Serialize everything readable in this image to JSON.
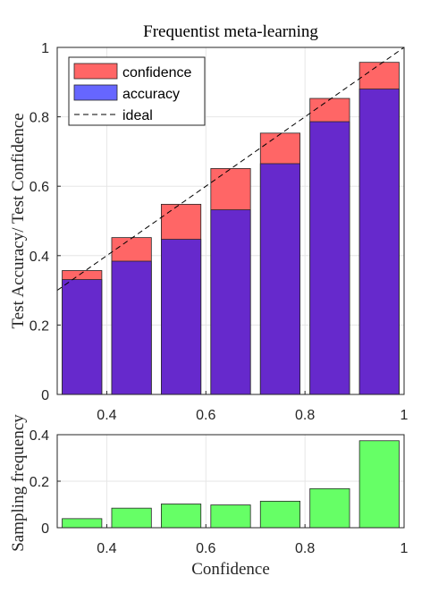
{
  "colors": {
    "confidence": "#ff6666",
    "accuracy_blend": "#6629cc",
    "accuracy_legend": "#6666ff",
    "frequency": "#66ff66",
    "grid": "#e6e6e6",
    "axis": "#262626"
  },
  "chart_data": [
    {
      "type": "bar",
      "title": "Frequentist meta-learning",
      "xlabel": "",
      "ylabel": "Test Accuracy/ Test Confidence",
      "xlim": [
        0.3,
        1.0
      ],
      "ylim": [
        0,
        1
      ],
      "xticks": [
        "0.4",
        "0.6",
        "0.8",
        "1"
      ],
      "yticks": [
        "0",
        "0.2",
        "0.4",
        "0.6",
        "0.8",
        "1"
      ],
      "grid": true,
      "legend_position": "top-left",
      "bar_centers": [
        0.35,
        0.45,
        0.55,
        0.65,
        0.75,
        0.85,
        0.95
      ],
      "bar_width": 0.08,
      "series": [
        {
          "name": "confidence",
          "values": [
            0.357,
            0.452,
            0.548,
            0.651,
            0.753,
            0.853,
            0.957
          ]
        },
        {
          "name": "accuracy",
          "values": [
            0.331,
            0.384,
            0.447,
            0.532,
            0.665,
            0.786,
            0.88
          ]
        },
        {
          "name": "ideal",
          "line": [
            [
              0.3,
              0.3
            ],
            [
              1.0,
              1.0
            ]
          ]
        }
      ]
    },
    {
      "type": "bar",
      "title": "",
      "xlabel": "Confidence",
      "ylabel": "Sampling frequency",
      "xlim": [
        0.3,
        1.0
      ],
      "ylim": [
        0,
        0.4
      ],
      "xticks": [
        "0.4",
        "0.6",
        "0.8",
        "1"
      ],
      "yticks": [
        "0",
        "0.2",
        "0.4"
      ],
      "grid": true,
      "bar_centers": [
        0.35,
        0.45,
        0.55,
        0.65,
        0.75,
        0.85,
        0.95
      ],
      "bar_width": 0.08,
      "values": [
        0.039,
        0.084,
        0.102,
        0.098,
        0.114,
        0.168,
        0.374
      ]
    }
  ]
}
